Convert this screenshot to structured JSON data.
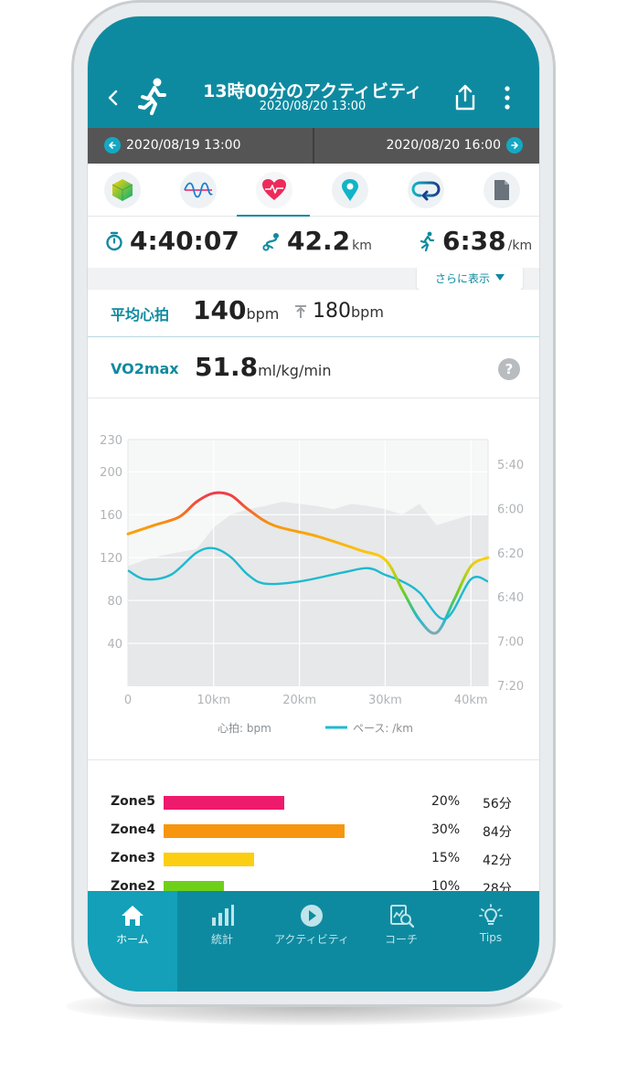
{
  "header": {
    "title": "13時00分のアクティビティ",
    "subtitle": "2020/08/20  13:00"
  },
  "date_range": {
    "start": "2020/08/19  13:00",
    "end": "2020/08/20  16:00"
  },
  "tabs": [
    {
      "icon": "cube-icon"
    },
    {
      "icon": "wave-icon"
    },
    {
      "icon": "heart-icon",
      "active": true
    },
    {
      "icon": "location-pin-icon"
    },
    {
      "icon": "loop-icon"
    },
    {
      "icon": "document-icon"
    }
  ],
  "summary": {
    "duration": "4:40:07",
    "distance": "42.2",
    "distance_unit": "km",
    "pace": "6:38",
    "pace_unit": "/km",
    "more_label": "さらに表示"
  },
  "heart_rate": {
    "label": "平均心拍",
    "avg": "140",
    "avg_unit": "bpm",
    "max": "180",
    "max_unit": "bpm"
  },
  "vo2max": {
    "label": "VO2max",
    "value": "51.8",
    "unit": "ml/kg/min",
    "help": "?"
  },
  "chart_data": {
    "type": "line",
    "x_ticks": [
      "0",
      "10km",
      "20km",
      "30km",
      "40km"
    ],
    "xlim": [
      0,
      42
    ],
    "left_ticks": [
      "230",
      "200",
      "160",
      "120",
      "80",
      "40"
    ],
    "ylim_left": [
      0,
      230
    ],
    "right_ticks": [
      "5:40",
      "6:00",
      "6:20",
      "6:40",
      "7:00",
      "7:20"
    ],
    "grid": true,
    "legend_position": "bottom",
    "series": [
      {
        "name": "心拍: bpm",
        "axis": "left",
        "x": [
          0,
          3,
          6,
          8,
          10,
          12,
          14,
          17,
          22,
          27,
          30,
          32,
          34,
          36,
          38,
          40,
          42
        ],
        "y": [
          142,
          150,
          158,
          172,
          180,
          178,
          165,
          150,
          140,
          127,
          118,
          90,
          62,
          50,
          80,
          112,
          120
        ]
      },
      {
        "name": "ペース: /km",
        "axis": "right",
        "x": [
          0,
          2,
          5,
          8,
          10,
          12,
          14,
          16,
          20,
          25,
          28,
          30,
          32,
          34,
          37,
          40,
          42
        ],
        "y": [
          "6:28",
          "6:32",
          "6:30",
          "6:20",
          "6:18",
          "6:22",
          "6:30",
          "6:34",
          "6:33",
          "6:29",
          "6:27",
          "6:30",
          "6:33",
          "6:38",
          "6:50",
          "6:32",
          "6:33"
        ]
      },
      {
        "name": "elevation",
        "type": "area",
        "x": [
          0,
          2,
          4,
          6,
          8,
          10,
          12,
          14,
          16,
          18,
          20,
          22,
          24,
          26,
          28,
          30,
          32,
          34,
          36,
          38,
          40,
          42
        ],
        "y": [
          112,
          118,
          122,
          125,
          128,
          148,
          160,
          165,
          168,
          172,
          170,
          168,
          165,
          170,
          168,
          165,
          160,
          170,
          150,
          155,
          160,
          160
        ]
      }
    ]
  },
  "zones": [
    {
      "name": "Zone5",
      "percent": 20,
      "percent_label": "20%",
      "minutes": "56分",
      "color": "#ee1a6b"
    },
    {
      "name": "Zone4",
      "percent": 30,
      "percent_label": "30%",
      "minutes": "84分",
      "color": "#f7960e"
    },
    {
      "name": "Zone3",
      "percent": 15,
      "percent_label": "15%",
      "minutes": "42分",
      "color": "#fcce12"
    },
    {
      "name": "Zone2",
      "percent": 10,
      "percent_label": "10%",
      "minutes": "28分",
      "color": "#6fd019"
    }
  ],
  "bottom_nav": [
    {
      "label": "ホーム",
      "icon": "home-icon",
      "active": true
    },
    {
      "label": "統計",
      "icon": "bar-chart-icon"
    },
    {
      "label": "アクティビティ",
      "icon": "play-circle-icon"
    },
    {
      "label": "コーチ",
      "icon": "coach-icon"
    },
    {
      "label": "Tips",
      "icon": "lightbulb-icon"
    }
  ],
  "colors": {
    "primary": "#0e8aa0",
    "date_bar": "#555556",
    "pace_line": "#1fb9cf",
    "hr_gradient": [
      "#fcce12",
      "#f7960e",
      "#ee1a6b"
    ]
  }
}
